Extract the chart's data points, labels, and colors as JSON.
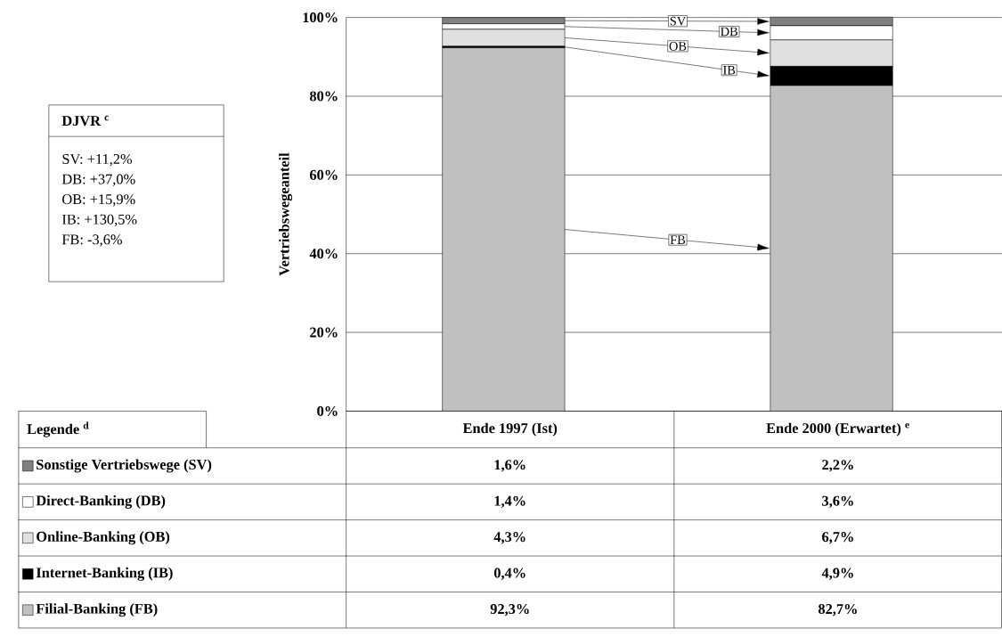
{
  "chart_data": {
    "type": "bar",
    "stacked": true,
    "categories": [
      "Ende 1997 (Ist)",
      "Ende 2000 (Erwartet) $^{e}$"
    ],
    "series": [
      {
        "name": "Filial-Banking (FB)",
        "color": "#c0c0c0",
        "values": [
          92.3,
          82.7
        ],
        "value_labels": [
          "92,3%",
          "82,7%"
        ]
      },
      {
        "name": "Internet-Banking (IB)",
        "color": "#000000",
        "values": [
          0.4,
          4.9
        ],
        "value_labels": [
          "0,4%",
          "4,9%"
        ]
      },
      {
        "name": "Online-Banking (OB)",
        "color": "#e0e0e0",
        "values": [
          4.3,
          6.7
        ],
        "value_labels": [
          "4,3%",
          "6,7%"
        ]
      },
      {
        "name": "Direct-Banking (DB)",
        "color": "#ffffff",
        "values": [
          1.4,
          3.6
        ],
        "value_labels": [
          "1,4%",
          "3,6%"
        ]
      },
      {
        "name": "Sonstige Vertriebswege (SV)",
        "color": "#808080",
        "values": [
          1.6,
          2.2
        ],
        "value_labels": [
          "1,6%",
          "2,2%"
        ]
      }
    ],
    "ylabel": "Vertriebswegeanteil",
    "ylim": [
      0,
      100
    ],
    "yticks": [
      {
        "value": 0,
        "label": "0%"
      },
      {
        "value": 20,
        "label": "20%"
      },
      {
        "value": 40,
        "label": "40%"
      },
      {
        "value": 60,
        "label": "60%"
      },
      {
        "value": 80,
        "label": "80%"
      },
      {
        "value": 100,
        "label": "100%"
      }
    ],
    "grid": "y",
    "legend": "bottom left",
    "annotations": [
      "FB",
      "IB",
      "OB",
      "DB",
      "SV",
      "DJVR $^{c}$",
      "SV: +11,2%",
      "DB: +37,0%",
      "OB: +15,9%",
      "IB: +130,5%",
      "FB: -3,6%",
      "Legende $^{d}$"
    ]
  }
}
